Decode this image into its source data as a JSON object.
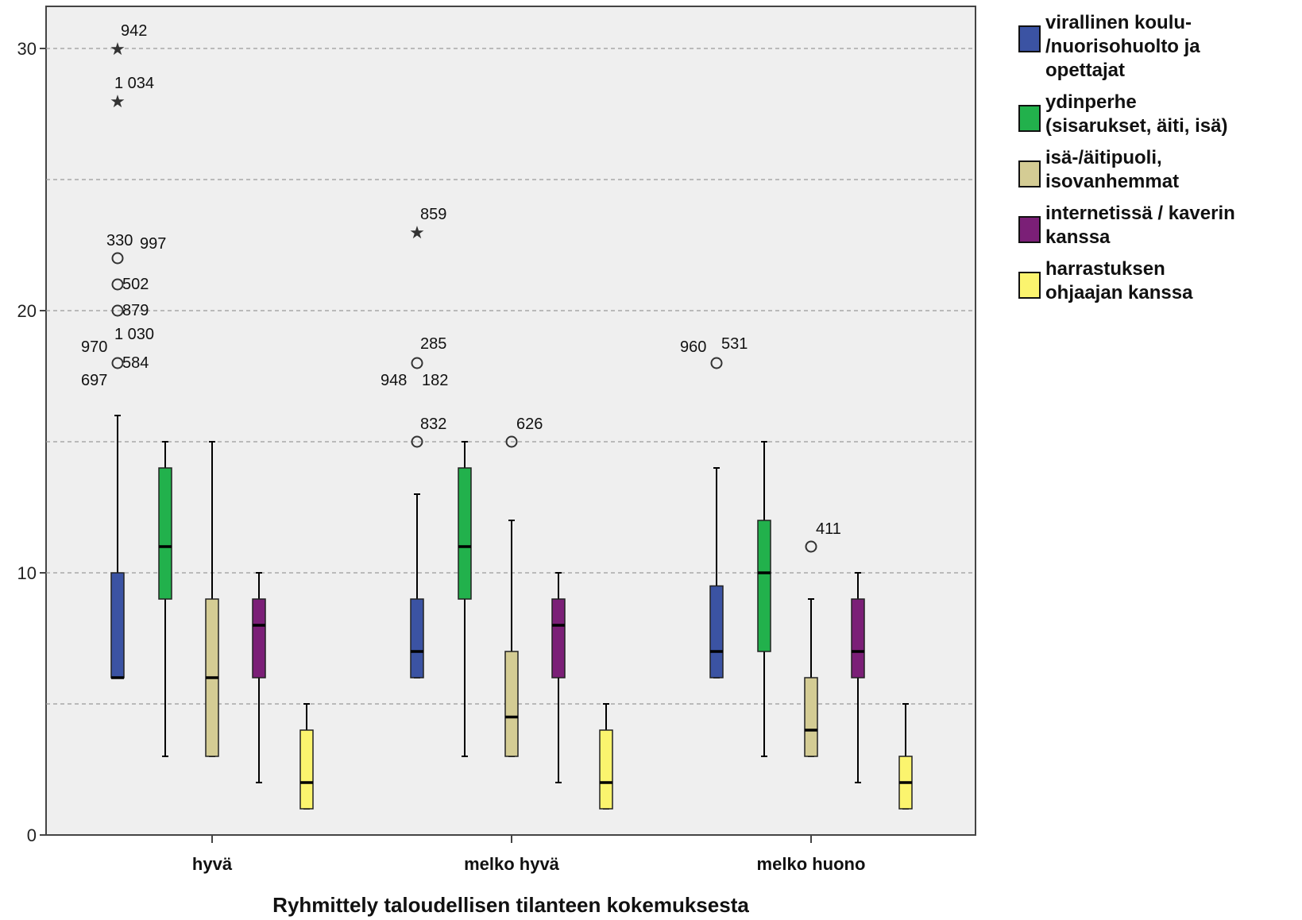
{
  "chart_data": {
    "type": "box",
    "xlabel": "Ryhmittely taloudellisen tilanteen kokemuksesta",
    "ylabel": "",
    "ylim": [
      0,
      32
    ],
    "yticks": [
      0,
      10,
      20,
      30
    ],
    "grid": "horizontal dashed",
    "legend_position": "right",
    "categories": [
      "hyvä",
      "melko hyvä",
      "melko huono"
    ],
    "series": [
      {
        "name": "virallinen koulu-/nuorisohuolto ja opettajat",
        "color": "#3b53a3",
        "boxes": [
          {
            "min": 6,
            "q1": 6,
            "median": 6,
            "q3": 10,
            "max": 16,
            "outliers": [
              {
                "value": 30,
                "label": "942",
                "marker": "star"
              },
              {
                "value": 28,
                "label": "1 034",
                "marker": "star"
              },
              {
                "value": 22,
                "label": "330",
                "marker": "circle"
              },
              {
                "value": 22,
                "label": "997",
                "marker": "circle"
              },
              {
                "value": 21,
                "label": "502",
                "marker": "circle"
              },
              {
                "value": 20,
                "label": "879",
                "marker": "circle"
              },
              {
                "value": 18,
                "label": "1 030",
                "marker": "circle"
              },
              {
                "value": 18,
                "label": "970",
                "marker": "circle"
              },
              {
                "value": 18,
                "label": "584",
                "marker": "circle"
              },
              {
                "value": 18,
                "label": "697",
                "marker": "circle"
              }
            ]
          },
          {
            "min": 6,
            "q1": 6,
            "median": 7,
            "q3": 9,
            "max": 13,
            "outliers": [
              {
                "value": 23,
                "label": "859",
                "marker": "star"
              },
              {
                "value": 18,
                "label": "285",
                "marker": "circle"
              },
              {
                "value": 18,
                "label": "948",
                "marker": "circle"
              },
              {
                "value": 18,
                "label": "182",
                "marker": "circle"
              },
              {
                "value": 15,
                "label": "832",
                "marker": "circle"
              }
            ]
          },
          {
            "min": 6,
            "q1": 6,
            "median": 7,
            "q3": 9.5,
            "max": 14,
            "outliers": [
              {
                "value": 18,
                "label": "960",
                "marker": "circle"
              },
              {
                "value": 18,
                "label": "531",
                "marker": "circle"
              }
            ]
          }
        ]
      },
      {
        "name": "ydinperhe (sisarukset, äiti, isä)",
        "color": "#22b14c",
        "boxes": [
          {
            "min": 3,
            "q1": 9,
            "median": 11,
            "q3": 14,
            "max": 15,
            "outliers": []
          },
          {
            "min": 3,
            "q1": 9,
            "median": 11,
            "q3": 14,
            "max": 15,
            "outliers": []
          },
          {
            "min": 3,
            "q1": 7,
            "median": 10,
            "q3": 12,
            "max": 15,
            "outliers": []
          }
        ]
      },
      {
        "name": "isä-/äitipuoli, isovanhemmat",
        "color": "#d4cc94",
        "boxes": [
          {
            "min": 3,
            "q1": 3,
            "median": 6,
            "q3": 9,
            "max": 15,
            "outliers": []
          },
          {
            "min": 3,
            "q1": 3,
            "median": 4.5,
            "q3": 7,
            "max": 12,
            "outliers": [
              {
                "value": 15,
                "label": "626",
                "marker": "circle"
              }
            ]
          },
          {
            "min": 3,
            "q1": 3,
            "median": 4,
            "q3": 6,
            "max": 9,
            "outliers": [
              {
                "value": 11,
                "label": "411",
                "marker": "circle"
              }
            ]
          }
        ]
      },
      {
        "name": "internetissä / kaverin kanssa",
        "color": "#7b1f77",
        "boxes": [
          {
            "min": 2,
            "q1": 6,
            "median": 8,
            "q3": 9,
            "max": 10,
            "outliers": []
          },
          {
            "min": 2,
            "q1": 6,
            "median": 8,
            "q3": 9,
            "max": 10,
            "outliers": []
          },
          {
            "min": 2,
            "q1": 6,
            "median": 7,
            "q3": 9,
            "max": 10,
            "outliers": []
          }
        ]
      },
      {
        "name": "harrastuksen ohjaajan kanssa",
        "color": "#fbf46e",
        "boxes": [
          {
            "min": 1,
            "q1": 1,
            "median": 2,
            "q3": 4,
            "max": 5,
            "outliers": []
          },
          {
            "min": 1,
            "q1": 1,
            "median": 2,
            "q3": 4,
            "max": 5,
            "outliers": []
          },
          {
            "min": 1,
            "q1": 1,
            "median": 2,
            "q3": 3,
            "max": 5,
            "outliers": []
          }
        ]
      }
    ]
  },
  "legend": {
    "items": [
      {
        "lines": [
          "virallinen koulu-",
          "/nuorisohuolto ja",
          "opettajat"
        ],
        "color": "#3b53a3"
      },
      {
        "lines": [
          "ydinperhe",
          "(sisarukset, äiti, isä)"
        ],
        "color": "#22b14c"
      },
      {
        "lines": [
          "isä-/äitipuoli,",
          "isovanhemmat"
        ],
        "color": "#d4cc94"
      },
      {
        "lines": [
          "internetissä / kaverin",
          "kanssa"
        ],
        "color": "#7b1f77"
      },
      {
        "lines": [
          "harrastuksen",
          "ohjaajan kanssa"
        ],
        "color": "#fbf46e"
      }
    ]
  }
}
